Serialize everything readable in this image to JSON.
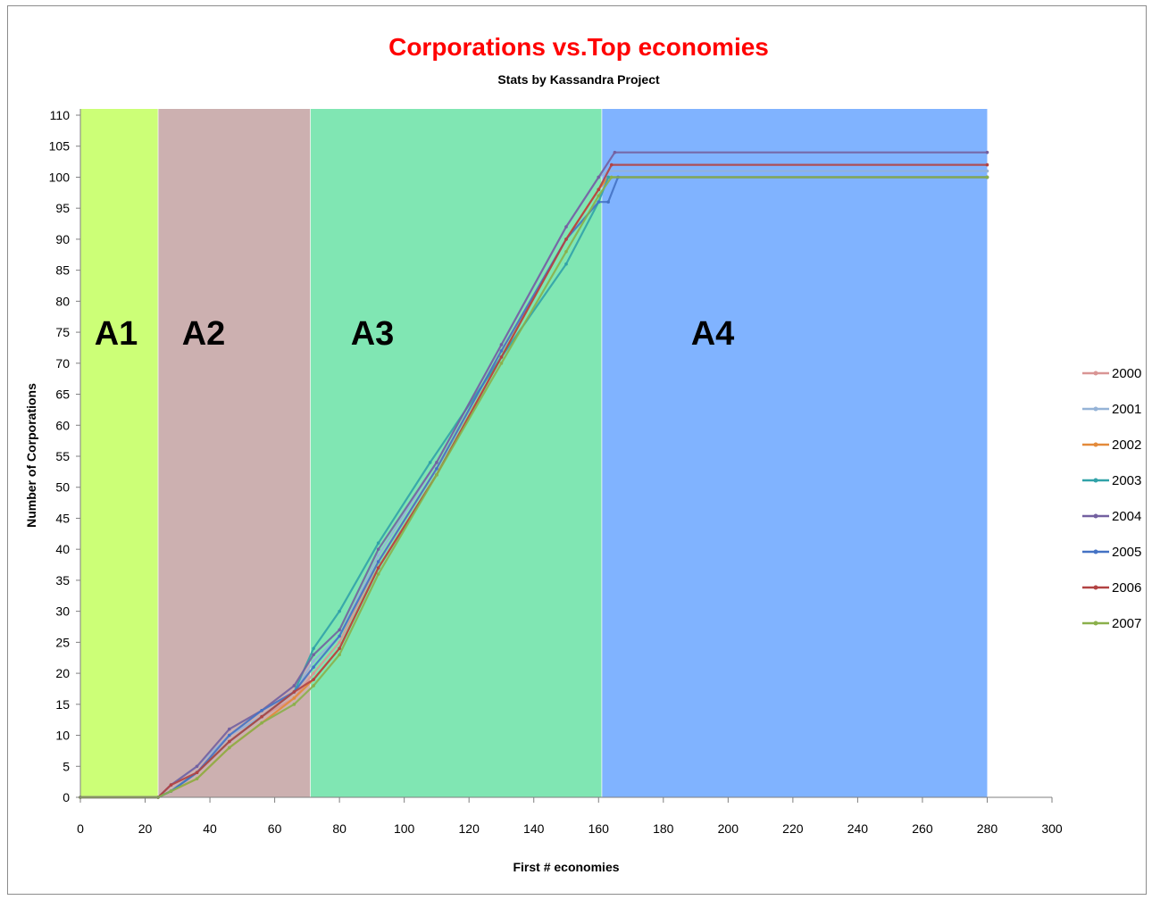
{
  "chart_data": {
    "type": "line",
    "title": "Corporations vs.Top economies",
    "subtitle": "Stats by Kassandra Project",
    "xlabel": "First # economies",
    "ylabel": "Number of Corporations",
    "xlim": [
      0,
      300
    ],
    "ylim": [
      0,
      110
    ],
    "x_ticks": [
      0,
      20,
      40,
      60,
      80,
      100,
      120,
      140,
      160,
      180,
      200,
      220,
      240,
      260,
      280,
      300
    ],
    "y_ticks": [
      0,
      5,
      10,
      15,
      20,
      25,
      30,
      35,
      40,
      45,
      50,
      55,
      60,
      65,
      70,
      75,
      80,
      85,
      90,
      95,
      100,
      105,
      110
    ],
    "grid": false,
    "legend_position": "right",
    "regions": [
      {
        "label": "A1",
        "x_start": 0,
        "x_end": 24,
        "color": "#ccff77"
      },
      {
        "label": "A2",
        "x_start": 24,
        "x_end": 71,
        "color": "#ccb0b0"
      },
      {
        "label": "A3",
        "x_start": 71,
        "x_end": 161,
        "color": "#80e6b3"
      },
      {
        "label": "A4",
        "x_start": 161,
        "x_end": 280,
        "color": "#80b3ff"
      }
    ],
    "series": [
      {
        "name": "2000",
        "color": "#d99594",
        "points": [
          [
            0,
            0
          ],
          [
            24,
            0
          ],
          [
            28,
            1
          ],
          [
            36,
            4
          ],
          [
            46,
            9
          ],
          [
            56,
            13
          ],
          [
            66,
            16
          ],
          [
            72,
            20
          ],
          [
            80,
            25
          ],
          [
            92,
            38
          ],
          [
            110,
            53
          ],
          [
            130,
            72
          ],
          [
            150,
            90
          ],
          [
            160,
            98
          ],
          [
            163,
            100
          ],
          [
            280,
            100
          ]
        ]
      },
      {
        "name": "2001",
        "color": "#95b3d7",
        "points": [
          [
            0,
            0
          ],
          [
            24,
            0
          ],
          [
            28,
            2
          ],
          [
            36,
            5
          ],
          [
            46,
            10
          ],
          [
            56,
            13
          ],
          [
            66,
            17
          ],
          [
            72,
            22
          ],
          [
            80,
            26
          ],
          [
            92,
            39
          ],
          [
            110,
            54
          ],
          [
            130,
            73
          ],
          [
            150,
            92
          ],
          [
            160,
            100
          ],
          [
            163,
            101
          ],
          [
            280,
            101
          ]
        ]
      },
      {
        "name": "2002",
        "color": "#e38a3a",
        "points": [
          [
            0,
            0
          ],
          [
            24,
            0
          ],
          [
            28,
            1
          ],
          [
            36,
            3
          ],
          [
            46,
            8
          ],
          [
            56,
            12
          ],
          [
            66,
            16
          ],
          [
            72,
            19
          ],
          [
            80,
            24
          ],
          [
            92,
            37
          ],
          [
            110,
            52
          ],
          [
            130,
            71
          ],
          [
            150,
            90
          ],
          [
            160,
            98
          ],
          [
            163,
            100
          ],
          [
            280,
            100
          ]
        ]
      },
      {
        "name": "2003",
        "color": "#31a2a8",
        "points": [
          [
            0,
            0
          ],
          [
            24,
            0
          ],
          [
            28,
            1
          ],
          [
            36,
            4
          ],
          [
            46,
            9
          ],
          [
            56,
            13
          ],
          [
            66,
            17
          ],
          [
            72,
            24
          ],
          [
            80,
            30
          ],
          [
            92,
            41
          ],
          [
            108,
            54
          ],
          [
            130,
            71
          ],
          [
            150,
            86
          ],
          [
            160,
            96
          ],
          [
            163,
            100
          ],
          [
            280,
            100
          ]
        ]
      },
      {
        "name": "2004",
        "color": "#7360a0",
        "points": [
          [
            0,
            0
          ],
          [
            24,
            0
          ],
          [
            28,
            2
          ],
          [
            36,
            5
          ],
          [
            46,
            11
          ],
          [
            56,
            14
          ],
          [
            66,
            18
          ],
          [
            72,
            23
          ],
          [
            80,
            27
          ],
          [
            92,
            40
          ],
          [
            110,
            54
          ],
          [
            130,
            73
          ],
          [
            150,
            92
          ],
          [
            160,
            100
          ],
          [
            165,
            104
          ],
          [
            280,
            104
          ]
        ]
      },
      {
        "name": "2005",
        "color": "#4472c4",
        "points": [
          [
            0,
            0
          ],
          [
            24,
            0
          ],
          [
            28,
            1
          ],
          [
            36,
            4
          ],
          [
            46,
            10
          ],
          [
            56,
            14
          ],
          [
            66,
            17
          ],
          [
            72,
            21
          ],
          [
            80,
            26
          ],
          [
            92,
            38
          ],
          [
            110,
            53
          ],
          [
            130,
            72
          ],
          [
            150,
            90
          ],
          [
            160,
            96
          ],
          [
            163,
            96
          ],
          [
            166,
            100
          ],
          [
            280,
            100
          ]
        ]
      },
      {
        "name": "2006",
        "color": "#b24343",
        "points": [
          [
            0,
            0
          ],
          [
            24,
            0
          ],
          [
            28,
            2
          ],
          [
            36,
            4
          ],
          [
            46,
            9
          ],
          [
            56,
            13
          ],
          [
            66,
            17
          ],
          [
            72,
            19
          ],
          [
            80,
            24
          ],
          [
            92,
            37
          ],
          [
            110,
            52
          ],
          [
            130,
            71
          ],
          [
            150,
            90
          ],
          [
            160,
            98
          ],
          [
            164,
            102
          ],
          [
            280,
            102
          ]
        ]
      },
      {
        "name": "2007",
        "color": "#8ab04a",
        "points": [
          [
            0,
            0
          ],
          [
            24,
            0
          ],
          [
            28,
            1
          ],
          [
            36,
            3
          ],
          [
            46,
            8
          ],
          [
            56,
            12
          ],
          [
            66,
            15
          ],
          [
            72,
            18
          ],
          [
            80,
            23
          ],
          [
            92,
            36
          ],
          [
            110,
            52
          ],
          [
            130,
            70
          ],
          [
            150,
            88
          ],
          [
            160,
            97
          ],
          [
            164,
            100
          ],
          [
            280,
            100
          ]
        ]
      }
    ]
  }
}
